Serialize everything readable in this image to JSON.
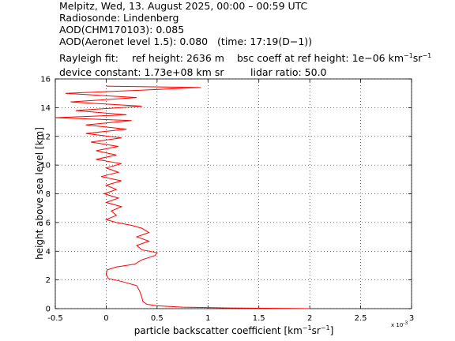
{
  "chart_data": {
    "type": "line",
    "header": {
      "line1": "Melpitz, Wed, 13. August 2025, 00:00 – 00:59 UTC",
      "line2": "Radiosonde: Lindenberg",
      "line3": "AOD(CHM170103): 0.085",
      "line4": "AOD(Aeronet level 1.5): 0.080   (time: 17:19(D−1))",
      "rayleigh": "Rayleigh fit:",
      "ref_height": "ref height: 2636 m",
      "bsc_coeff": "bsc coeff at ref height: 1e−06 km",
      "bsc_sup1": "−1",
      "bsc_sr": "sr",
      "bsc_sup2": "−1",
      "device_constant": "device constant: 1.73e+08 km sr",
      "lidar_ratio": "lidar ratio: 50.0"
    },
    "xlabel": {
      "text": "particle backscatter coefficient [km",
      "sup1": "−1",
      "sr": "sr",
      "sup2": "−1",
      "close": "]"
    },
    "ylabel": "height above sea level [km]",
    "x_multiplier": {
      "base": "x 10",
      "exponent": "-3"
    },
    "xlim": [
      -0.5,
      3
    ],
    "xticks": [
      -0.5,
      0,
      0.5,
      1,
      1.5,
      2,
      2.5,
      3
    ],
    "ylim": [
      0,
      16
    ],
    "yticks": [
      0,
      2,
      4,
      6,
      8,
      10,
      12,
      14,
      16
    ],
    "grid": true,
    "y": [
      0,
      0.05,
      0.1,
      0.2,
      0.3,
      0.5,
      0.8,
      1.2,
      1.6,
      1.9,
      2.1,
      2.4,
      2.7,
      2.9,
      3.1,
      3.4,
      3.7,
      3.9,
      4.1,
      4.4,
      4.7,
      5.0,
      5.3,
      5.6,
      5.8,
      6.0,
      6.2,
      6.5,
      6.8,
      7.1,
      7.4,
      7.7,
      8.0,
      8.3,
      8.6,
      8.9,
      9.2,
      9.5,
      9.8,
      10.1,
      10.4,
      10.7,
      11.0,
      11.3,
      11.6,
      11.9,
      12.2,
      12.5,
      12.8,
      13.1,
      13.3,
      13.5,
      13.8,
      14.1,
      14.4,
      14.7,
      15.0,
      15.2,
      15.4,
      15.5
    ],
    "series": [
      {
        "color": "#ff0000",
        "values": [
          2.0,
          1.2,
          0.75,
          0.5,
          0.4,
          0.36,
          0.35,
          0.33,
          0.3,
          0.15,
          0.02,
          0.0,
          0.01,
          0.1,
          0.28,
          0.35,
          0.48,
          0.5,
          0.35,
          0.3,
          0.42,
          0.3,
          0.42,
          0.35,
          0.25,
          0.1,
          0.0,
          0.1,
          0.05,
          0.15,
          0.0,
          0.12,
          -0.02,
          0.1,
          0.0,
          0.15,
          -0.05,
          0.12,
          0.0,
          0.15,
          -0.1,
          0.1,
          -0.1,
          0.12,
          -0.15,
          0.15,
          -0.2,
          0.2,
          -0.2,
          0.25,
          -0.5,
          0.2,
          -0.3,
          0.35,
          -0.35,
          0.3,
          -0.4,
          0.3,
          0.93,
          0.0
        ]
      }
    ]
  }
}
